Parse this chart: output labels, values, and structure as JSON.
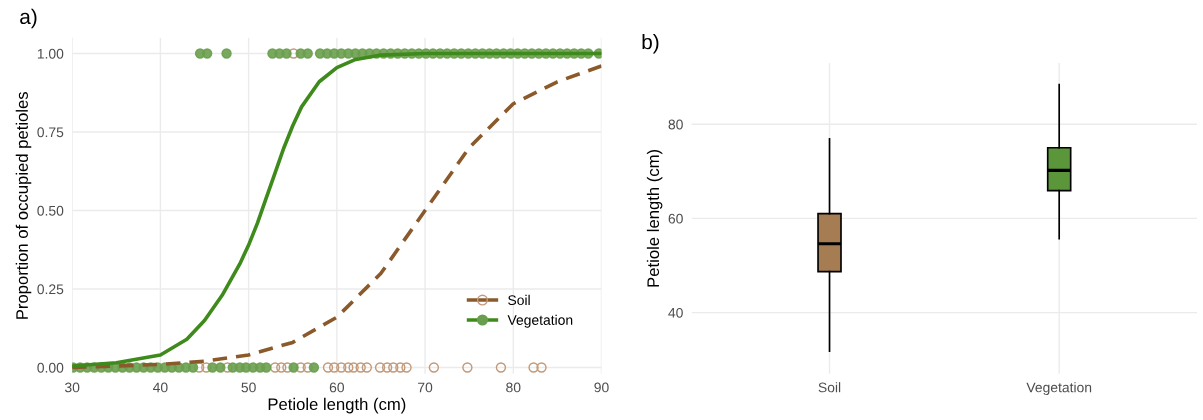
{
  "chart_data": [
    {
      "type": "line",
      "title": "a)",
      "xlabel": "Petiole length (cm)",
      "ylabel": "Proportion of occupied petioles",
      "xlim": [
        30,
        90
      ],
      "xticks": [
        30,
        40,
        50,
        60,
        70,
        80,
        90
      ],
      "ylim": [
        -0.02,
        1.05
      ],
      "yticks": [
        {
          "value": 0,
          "label": "0.00"
        },
        {
          "value": 0.25,
          "label": "0.25"
        },
        {
          "value": 0.5,
          "label": "0.50"
        },
        {
          "value": 0.75,
          "label": "0.75"
        },
        {
          "value": 1,
          "label": "1.00"
        }
      ],
      "grid": true,
      "legend": "bottom right",
      "series": [
        {
          "type": "scatter",
          "marker": "open circle",
          "color": "#c29a7a",
          "x": [
            55.1,
            44.4,
            45.2,
            47.6,
            53.0,
            53.7,
            54.4,
            55.9,
            56.7,
            59.0,
            59.7,
            60.5,
            61.3,
            61.9,
            62.7,
            63.4,
            64.9,
            65.7,
            66.4,
            67.2,
            67.9,
            71.0,
            74.8,
            78.6,
            82.3,
            83.2
          ],
          "values": [
            1,
            0,
            0,
            0,
            0,
            0,
            0,
            0,
            0,
            0,
            0,
            0,
            0,
            0,
            0,
            0,
            0,
            0,
            0,
            0,
            0,
            0,
            0,
            0,
            0,
            0
          ]
        },
        {
          "type": "scatter",
          "marker": "circle",
          "color": "#6a9e4e",
          "x": [
            44.5,
            45.3,
            47.5,
            52.7,
            53.5,
            54.3,
            55.9,
            56.7,
            58.1,
            58.9,
            59.7,
            60.5,
            61.3,
            62.1,
            62.9,
            63.7,
            64.5,
            65.3,
            66.1,
            66.9,
            67.7,
            68.5,
            69.3,
            70.1,
            70.9,
            71.7,
            72.5,
            73.3,
            74.1,
            74.9,
            75.7,
            76.5,
            77.3,
            78.1,
            78.9,
            79.7,
            80.5,
            81.3,
            82.1,
            82.9,
            83.7,
            84.5,
            85.3,
            86.1,
            86.9,
            87.7,
            88.5,
            89.7,
            30.1,
            30.9,
            31.7,
            32.5,
            33.3,
            34.1,
            34.9,
            35.7,
            36.5,
            37.3,
            38.1,
            38.9,
            39.7,
            40.5,
            41.3,
            42.1,
            42.9,
            43.7,
            45.9,
            46.8,
            48.2,
            49.0,
            49.7,
            50.5,
            51.3,
            52.0,
            55.1,
            57.4
          ],
          "values": [
            1,
            1,
            1,
            1,
            1,
            1,
            1,
            1,
            1,
            1,
            1,
            1,
            1,
            1,
            1,
            1,
            1,
            1,
            1,
            1,
            1,
            1,
            1,
            1,
            1,
            1,
            1,
            1,
            1,
            1,
            1,
            1,
            1,
            1,
            1,
            1,
            1,
            1,
            1,
            1,
            1,
            1,
            1,
            1,
            1,
            1,
            1,
            1,
            0,
            0,
            0,
            0,
            0,
            0,
            0,
            0,
            0,
            0,
            0,
            0,
            0,
            0,
            0,
            0,
            0,
            0,
            0,
            0,
            0,
            0,
            0,
            0,
            0,
            0,
            0,
            0
          ]
        },
        {
          "name": "Soil",
          "type": "line",
          "line_style": "dashed",
          "color": "#8b5a2b",
          "x": [
            30,
            40,
            45,
            50,
            55,
            60,
            65,
            70,
            75,
            80,
            85,
            90
          ],
          "values": [
            0.0,
            0.01,
            0.02,
            0.04,
            0.08,
            0.16,
            0.3,
            0.5,
            0.7,
            0.84,
            0.91,
            0.96
          ]
        },
        {
          "name": "Vegetation",
          "type": "line",
          "line_style": "solid",
          "color": "#3f8a1c",
          "x": [
            30,
            35,
            40,
            43,
            45,
            47,
            49,
            50,
            51,
            52,
            53,
            54,
            55,
            56,
            58,
            60,
            62,
            65,
            70,
            80,
            90
          ],
          "values": [
            0.005,
            0.015,
            0.04,
            0.09,
            0.15,
            0.23,
            0.33,
            0.39,
            0.46,
            0.54,
            0.62,
            0.7,
            0.77,
            0.83,
            0.91,
            0.955,
            0.98,
            0.995,
            1,
            1,
            1
          ]
        }
      ]
    },
    {
      "type": "box",
      "title": "b)",
      "ylabel": "Petiole length (cm)",
      "categories": [
        "Soil",
        "Vegetation"
      ],
      "ylim": [
        27,
        93
      ],
      "yticks": [
        40,
        60,
        80
      ],
      "grid": true,
      "colors": [
        "#a67c52",
        "#5b963a"
      ],
      "boxes": [
        {
          "low": 31.8,
          "q1": 48.7,
          "median": 54.6,
          "q3": 61.0,
          "high": 76.9
        },
        {
          "low": 55.7,
          "q1": 65.9,
          "median": 70.2,
          "q3": 75.0,
          "high": 88.4
        }
      ]
    }
  ]
}
